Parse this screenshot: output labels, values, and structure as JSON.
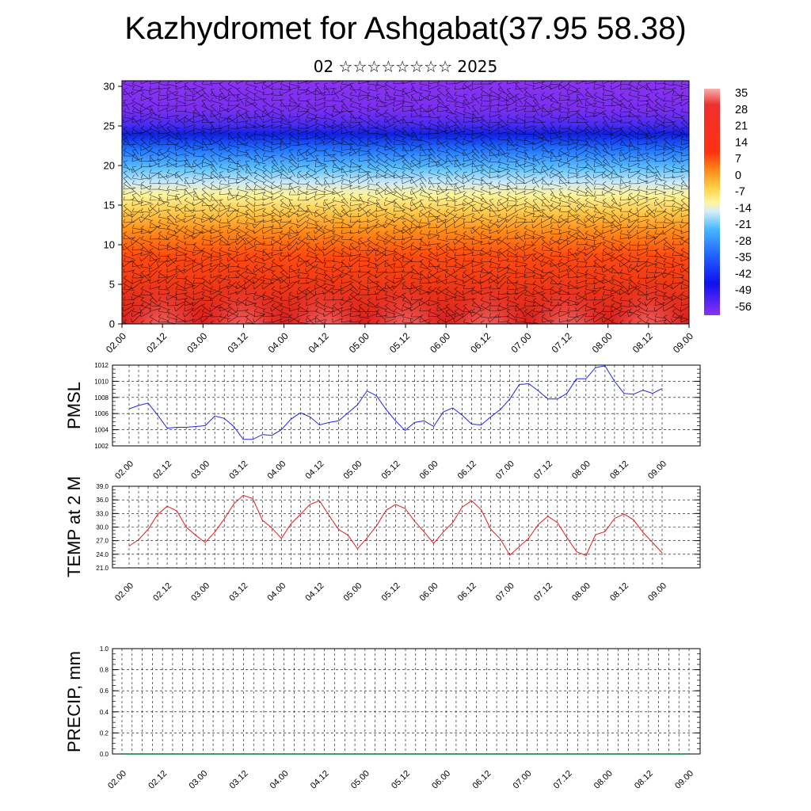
{
  "title": "Kazhydromet for Ashgabat(37.95 58.38)",
  "subtitle": "02 ☆☆☆☆☆☆☆☆ 2025",
  "colors": {
    "pmsl_line": "#1f24e6",
    "temp_line": "#e61b1b",
    "precip_line": "#0a7a3a"
  },
  "chart_data": [
    {
      "type": "heatmap",
      "title": "",
      "xlabel": "",
      "ylabel": "",
      "x_tick_labels": [
        "02.00",
        "02.12",
        "03.00",
        "03.12",
        "04.00",
        "04.12",
        "05.00",
        "05.12",
        "06.00",
        "06.12",
        "07.00",
        "07.12",
        "08.00",
        "08.12",
        "09.00"
      ],
      "y_ticks": [
        0,
        5,
        10,
        15,
        20,
        25,
        30
      ],
      "ylim": [
        0,
        30.7
      ],
      "colorbar_labels": [
        "35",
        "28",
        "21",
        "14",
        "7",
        "0",
        "-7",
        "-14",
        "-21",
        "-28",
        "-35",
        "-42",
        "-49",
        "-56"
      ],
      "overlay": "wind barbs"
    },
    {
      "type": "line",
      "ylabel": "PMSL",
      "x_tick_labels": [
        "02.00",
        "02.12",
        "03.00",
        "03.12",
        "04.00",
        "04.12",
        "05.00",
        "05.12",
        "06.00",
        "06.12",
        "07.00",
        "07.12",
        "08.00",
        "08.12",
        "09.00"
      ],
      "y_tick_labels": [
        "1002",
        "1004",
        "1006",
        "1008",
        "1010",
        "1012"
      ],
      "ylim": [
        1002,
        1012
      ],
      "grid": true,
      "values": [
        1006.6,
        1007.0,
        1007.3,
        1005.8,
        1004.2,
        1004.3,
        1004.3,
        1004.4,
        1004.5,
        1005.7,
        1005.4,
        1004.4,
        1002.8,
        1002.8,
        1003.4,
        1003.3,
        1004.0,
        1005.3,
        1006.1,
        1005.6,
        1004.6,
        1004.9,
        1005.1,
        1006.1,
        1007.1,
        1008.8,
        1008.2,
        1006.5,
        1005.1,
        1003.9,
        1004.9,
        1005.1,
        1004.4,
        1006.2,
        1006.7,
        1005.8,
        1004.7,
        1004.6,
        1005.6,
        1006.5,
        1007.8,
        1009.6,
        1009.7,
        1008.8,
        1007.8,
        1007.8,
        1008.5,
        1010.3,
        1010.3,
        1011.7,
        1011.9,
        1010.0,
        1008.5,
        1008.4,
        1008.9,
        1008.5,
        1009.1
      ]
    },
    {
      "type": "line",
      "ylabel": "TEMP at 2 M",
      "x_tick_labels": [
        "02.00",
        "02.12",
        "03.00",
        "03.12",
        "04.00",
        "04.12",
        "05.00",
        "05.12",
        "06.00",
        "06.12",
        "07.00",
        "07.12",
        "08.00",
        "08.12",
        "09.00"
      ],
      "y_tick_labels": [
        "21.0",
        "24.0",
        "27.0",
        "30.0",
        "33.0",
        "36.0",
        "39.0"
      ],
      "ylim": [
        21,
        39
      ],
      "grid": true,
      "values": [
        25.8,
        27.2,
        29.5,
        32.8,
        34.6,
        33.6,
        30.0,
        28.2,
        26.6,
        28.9,
        31.8,
        35.1,
        37.0,
        36.3,
        31.5,
        29.8,
        27.5,
        30.7,
        32.8,
        35.0,
        35.8,
        32.6,
        29.5,
        28.2,
        25.2,
        27.6,
        30.3,
        33.7,
        35.0,
        34.1,
        31.3,
        28.9,
        26.4,
        28.9,
        31.0,
        34.4,
        35.8,
        33.8,
        29.5,
        27.4,
        23.8,
        25.7,
        27.6,
        30.6,
        32.4,
        31.0,
        27.7,
        24.6,
        23.7,
        28.3,
        29.0,
        31.9,
        32.9,
        31.6,
        28.8,
        26.6,
        24.3
      ]
    },
    {
      "type": "line",
      "ylabel": "PRECIP, mm",
      "x_tick_labels": [
        "02.00",
        "02.12",
        "03.00",
        "03.12",
        "04.00",
        "04.12",
        "05.00",
        "05.12",
        "06.00",
        "06.12",
        "07.00",
        "07.12",
        "08.00",
        "08.12",
        "09.00"
      ],
      "y_tick_labels": [
        "0.0",
        "0.2",
        "0.4",
        "0.6",
        "0.8",
        "1.0"
      ],
      "ylim": [
        0,
        1
      ],
      "grid": true,
      "values": [
        0,
        0,
        0,
        0,
        0,
        0,
        0,
        0,
        0,
        0,
        0,
        0,
        0,
        0,
        0,
        0,
        0,
        0,
        0,
        0,
        0,
        0,
        0,
        0,
        0,
        0,
        0,
        0,
        0,
        0,
        0,
        0,
        0,
        0,
        0,
        0,
        0,
        0,
        0,
        0,
        0,
        0,
        0,
        0,
        0,
        0,
        0,
        0,
        0,
        0,
        0,
        0,
        0,
        0,
        0,
        0,
        0
      ]
    }
  ]
}
